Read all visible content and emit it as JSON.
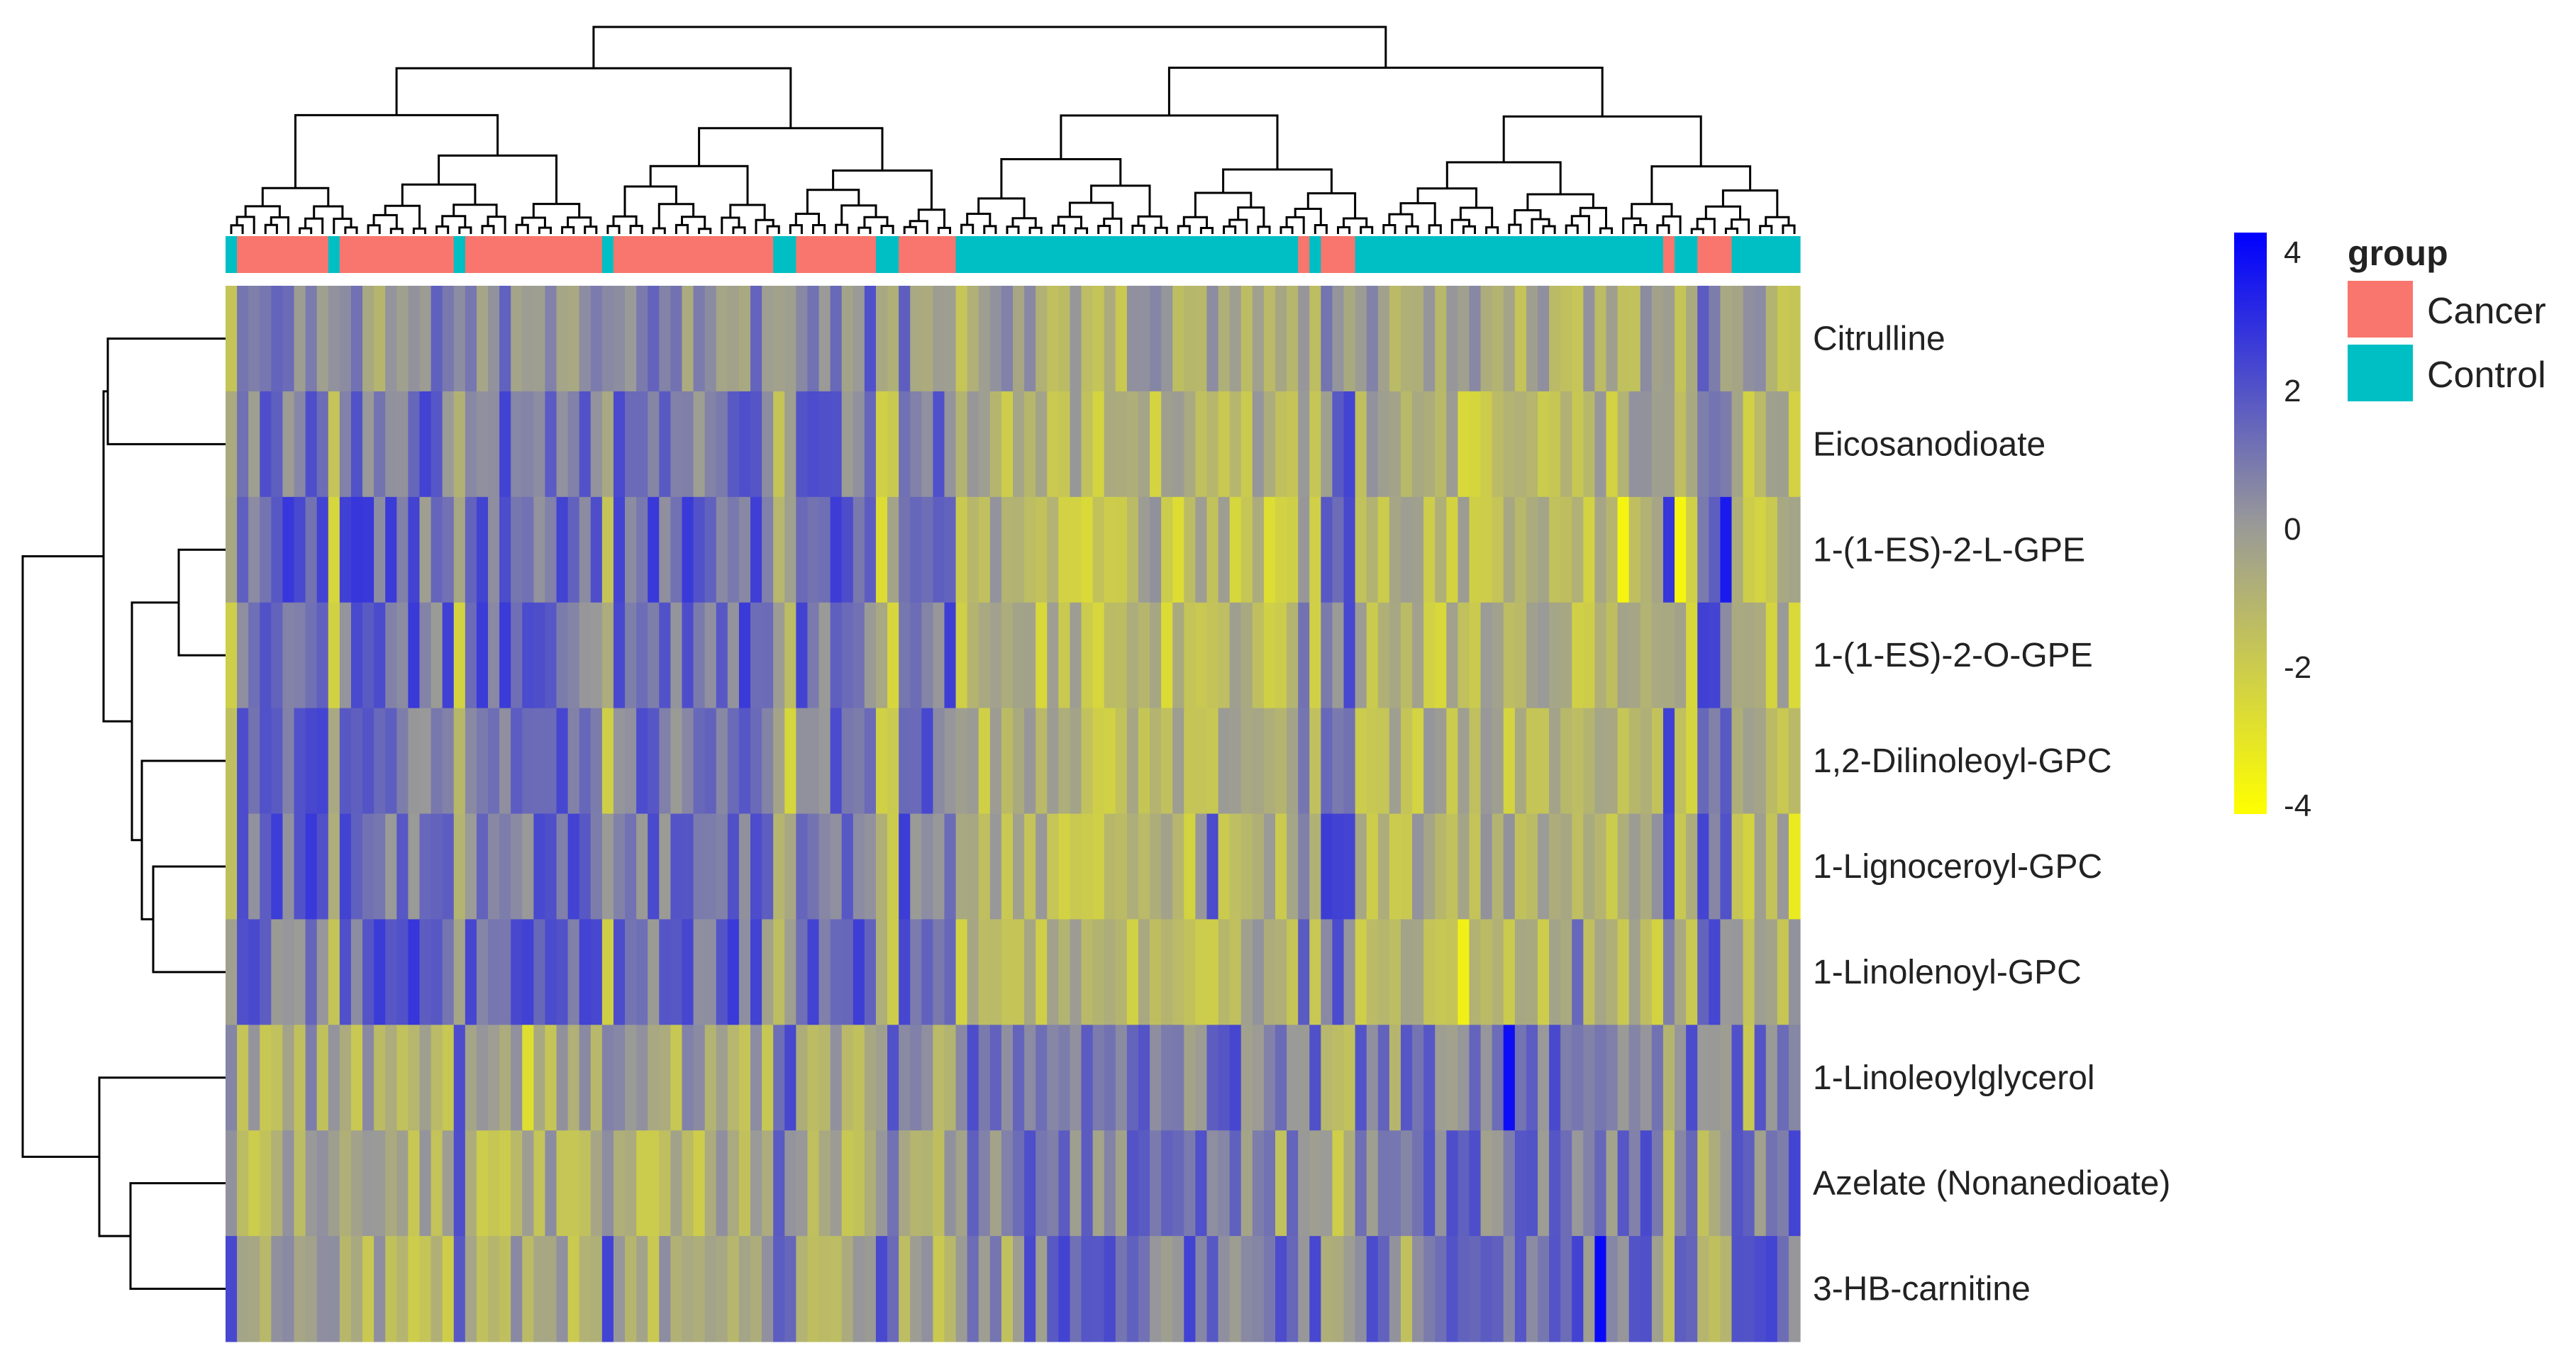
{
  "chart_data": {
    "type": "heatmap",
    "rows": [
      "Citrulline",
      "Eicosanodioate",
      "1-(1-ES)-2-L-GPE",
      "1-(1-ES)-2-O-GPE",
      "1,2-Dilinoleoyl-GPC",
      "1-Lignoceroyl-GPC",
      "1-Linolenoyl-GPC",
      "1-Linoleoylglycerol",
      "Azelate (Nonanedioate)",
      "3-HB-carnitine"
    ],
    "row_clusters": [
      [
        "Citrulline",
        "Eicosanodioate",
        "1-(1-ES)-2-L-GPE",
        "1-(1-ES)-2-O-GPE",
        "1,2-Dilinoleoyl-GPC",
        "1-Lignoceroyl-GPC",
        "1-Linolenoyl-GPC"
      ],
      [
        "1-Linoleoylglycerol",
        "Azelate (Nonanedioate)",
        "3-HB-carnitine"
      ]
    ],
    "column_groups": [
      "Control",
      "Cancer",
      "Cancer",
      "Cancer",
      "Cancer",
      "Cancer",
      "Cancer",
      "Cancer",
      "Cancer",
      "Control",
      "Cancer",
      "Cancer",
      "Cancer",
      "Cancer",
      "Cancer",
      "Cancer",
      "Cancer",
      "Cancer",
      "Cancer",
      "Cancer",
      "Control",
      "Cancer",
      "Cancer",
      "Cancer",
      "Cancer",
      "Cancer",
      "Cancer",
      "Cancer",
      "Cancer",
      "Cancer",
      "Cancer",
      "Cancer",
      "Cancer",
      "Control",
      "Cancer",
      "Cancer",
      "Cancer",
      "Cancer",
      "Cancer",
      "Cancer",
      "Cancer",
      "Cancer",
      "Cancer",
      "Cancer",
      "Cancer",
      "Cancer",
      "Cancer",
      "Cancer",
      "Control",
      "Control",
      "Cancer",
      "Cancer",
      "Cancer",
      "Cancer",
      "Cancer",
      "Cancer",
      "Cancer",
      "Control",
      "Control",
      "Cancer",
      "Cancer",
      "Cancer",
      "Cancer",
      "Cancer",
      "Control",
      "Control",
      "Control",
      "Control",
      "Control",
      "Control",
      "Control",
      "Control",
      "Control",
      "Control",
      "Control",
      "Control",
      "Control",
      "Control",
      "Control",
      "Control",
      "Control",
      "Control",
      "Control",
      "Control",
      "Control",
      "Control",
      "Control",
      "Control",
      "Control",
      "Control",
      "Control",
      "Control",
      "Control",
      "Control",
      "Cancer",
      "Control",
      "Cancer",
      "Cancer",
      "Cancer",
      "Control",
      "Control",
      "Control",
      "Control",
      "Control",
      "Control",
      "Control",
      "Control",
      "Control",
      "Control",
      "Control",
      "Control",
      "Control",
      "Control",
      "Control",
      "Control",
      "Control",
      "Control",
      "Control",
      "Control",
      "Control",
      "Control",
      "Control",
      "Control",
      "Control",
      "Control",
      "Control",
      "Cancer",
      "Control",
      "Control",
      "Cancer",
      "Cancer",
      "Cancer",
      "Control",
      "Control",
      "Control",
      "Control",
      "Control",
      "Control"
    ],
    "cancer_mean": [
      0.4,
      1.0,
      1.3,
      1.2,
      1.1,
      1.2,
      1.2,
      -0.6,
      -0.8,
      -0.8
    ],
    "control_mean": [
      -0.6,
      -1.1,
      -1.4,
      -1.3,
      -1.1,
      -1.0,
      -1.1,
      0.9,
      0.8,
      1.0
    ],
    "color_scale": {
      "min": -4,
      "mid": 0,
      "max": 4,
      "low_color": "#ffff00",
      "mid_color": "#999999",
      "high_color": "#0000ff",
      "ticks": [
        "4",
        "2",
        "0",
        "-2",
        "-4"
      ]
    },
    "group_colors": {
      "Cancer": "#f8766d",
      "Control": "#00bfc4"
    },
    "legend": {
      "title": "group",
      "entries": [
        "Cancer",
        "Control"
      ]
    }
  }
}
